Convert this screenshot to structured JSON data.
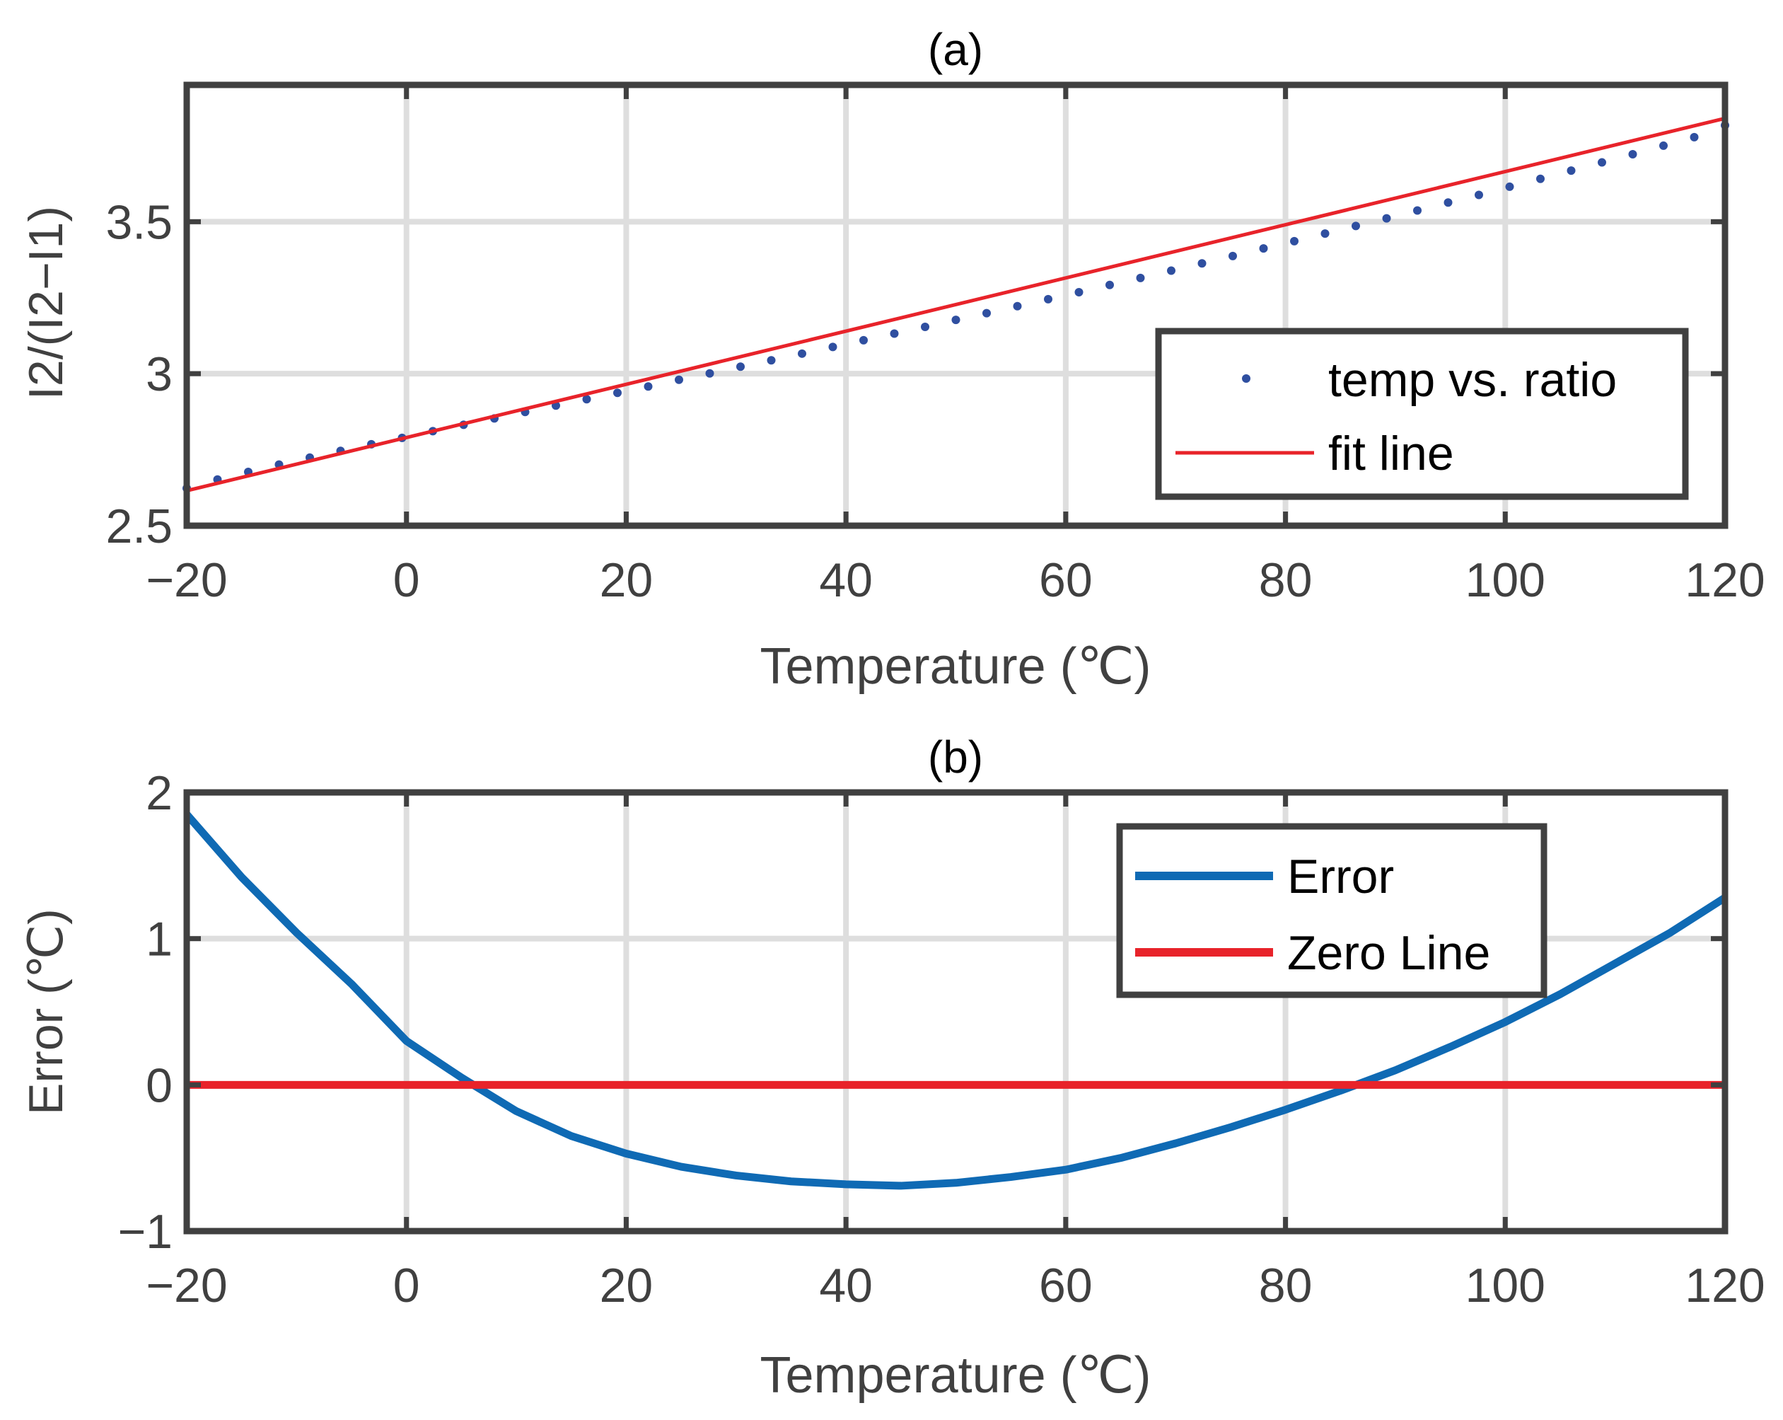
{
  "chart_data": [
    {
      "type": "scatter",
      "title": "(a)",
      "xlabel": "Temperature (℃)",
      "ylabel": "I2/(I2−I1)",
      "xlim": [
        -20,
        120
      ],
      "ylim": [
        2.5,
        3.95
      ],
      "xticks": [
        "−20",
        "0",
        "20",
        "40",
        "60",
        "80",
        "100",
        "120"
      ],
      "xtick_values": [
        -20,
        0,
        20,
        40,
        60,
        80,
        100,
        120
      ],
      "yticks": [
        "2.5",
        "3",
        "3.5"
      ],
      "ytick_values": [
        2.5,
        3.0,
        3.5
      ],
      "grid": true,
      "legend_position": "bottom-right",
      "series": [
        {
          "name": "temp vs. ratio",
          "style": "dots",
          "color": "#2f4fa0",
          "x": [
            -20,
            -17.2,
            -14.4,
            -11.6,
            -8.8,
            -6,
            -3.2,
            -0.4,
            2.4,
            5.2,
            8,
            10.8,
            13.6,
            16.4,
            19.2,
            22,
            24.8,
            27.6,
            30.4,
            33.2,
            36,
            38.8,
            41.6,
            44.4,
            47.2,
            50,
            52.8,
            55.6,
            58.4,
            61.2,
            64,
            66.8,
            69.6,
            72.4,
            75.2,
            78,
            80.8,
            83.6,
            86.4,
            89.2,
            92,
            94.8,
            97.6,
            100.4,
            103.2,
            106,
            108.8,
            111.6,
            114.4,
            117.2,
            120
          ],
          "y": [
            2.623,
            2.652,
            2.677,
            2.701,
            2.724,
            2.746,
            2.768,
            2.789,
            2.811,
            2.832,
            2.853,
            2.874,
            2.895,
            2.916,
            2.937,
            2.958,
            2.98,
            3.001,
            3.023,
            3.044,
            3.066,
            3.088,
            3.11,
            3.132,
            3.154,
            3.177,
            3.199,
            3.222,
            3.245,
            3.268,
            3.292,
            3.315,
            3.339,
            3.363,
            3.387,
            3.412,
            3.436,
            3.461,
            3.486,
            3.511,
            3.537,
            3.563,
            3.588,
            3.615,
            3.641,
            3.668,
            3.695,
            3.722,
            3.75,
            3.778,
            3.817
          ]
        },
        {
          "name": "fit line",
          "style": "line",
          "color": "#e8232a",
          "x": [
            -20,
            120
          ],
          "y": [
            2.615,
            3.84
          ]
        }
      ]
    },
    {
      "type": "line",
      "title": "(b)",
      "xlabel": "Temperature (℃)",
      "ylabel": "Error (℃)",
      "xlim": [
        -20,
        120
      ],
      "ylim": [
        -1,
        2
      ],
      "xticks": [
        "−20",
        "0",
        "20",
        "40",
        "60",
        "80",
        "100",
        "120"
      ],
      "xtick_values": [
        -20,
        0,
        20,
        40,
        60,
        80,
        100,
        120
      ],
      "yticks": [
        "−1",
        "0",
        "1",
        "2"
      ],
      "ytick_values": [
        -1,
        0,
        1,
        2
      ],
      "grid": true,
      "legend_position": "top-right",
      "series": [
        {
          "name": "Error",
          "color": "#0f6ab4",
          "x": [
            -20,
            -15,
            -10,
            -5,
            0,
            5,
            10,
            15,
            20,
            25,
            30,
            35,
            40,
            45,
            50,
            55,
            60,
            65,
            70,
            75,
            80,
            85,
            90,
            95,
            100,
            105,
            110,
            115,
            120
          ],
          "y": [
            1.85,
            1.42,
            1.04,
            0.69,
            0.3,
            0.05,
            -0.18,
            -0.35,
            -0.47,
            -0.56,
            -0.62,
            -0.66,
            -0.68,
            -0.69,
            -0.67,
            -0.63,
            -0.58,
            -0.5,
            -0.4,
            -0.29,
            -0.17,
            -0.04,
            0.1,
            0.26,
            0.43,
            0.62,
            0.83,
            1.04,
            1.28
          ]
        },
        {
          "name": "Zero Line",
          "color": "#e8232a",
          "x": [
            -20,
            120
          ],
          "y": [
            0,
            0
          ]
        }
      ]
    }
  ]
}
